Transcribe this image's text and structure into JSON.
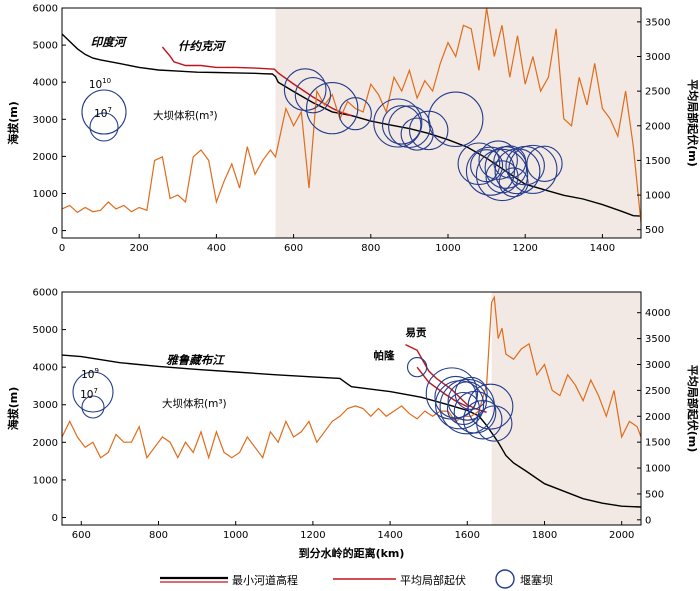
{
  "chart_data": [
    {
      "type": "line",
      "panel": "top",
      "river_label": "印度河",
      "tributary_label": "什约克河",
      "xlim": [
        0,
        1500
      ],
      "xticks": [
        0,
        200,
        400,
        600,
        800,
        1000,
        1200,
        1400
      ],
      "ylim_left": [
        -200,
        6000
      ],
      "yticks_left": [
        0,
        1000,
        2000,
        3000,
        4000,
        5000,
        6000
      ],
      "ylabel_left": "海拔(m)",
      "ylim_right": [
        380,
        3700
      ],
      "yticks_right": [
        500,
        1000,
        1500,
        2000,
        2500,
        3000,
        3500
      ],
      "ylabel_right": "平均局部起伏(m)",
      "shaded_region": [
        553,
        1500
      ],
      "size_legend": {
        "big_label": "10",
        "big_exp": "10",
        "small_label": "10",
        "small_exp": "7",
        "caption": "大坝体积(m³)"
      },
      "series": [
        {
          "name": "最小河道高程",
          "color": "#000000",
          "x": [
            0,
            20,
            40,
            60,
            80,
            100,
            150,
            200,
            250,
            300,
            350,
            400,
            450,
            500,
            520,
            545,
            553,
            560,
            600,
            650,
            700,
            750,
            800,
            850,
            900,
            950,
            1000,
            1050,
            1100,
            1150,
            1200,
            1250,
            1300,
            1350,
            1400,
            1450,
            1480,
            1500
          ],
          "y": [
            5300,
            5100,
            4900,
            4750,
            4650,
            4600,
            4500,
            4400,
            4330,
            4300,
            4270,
            4260,
            4250,
            4240,
            4230,
            4220,
            4150,
            4000,
            3750,
            3450,
            3200,
            3100,
            2950,
            2850,
            2750,
            2620,
            2450,
            2250,
            1950,
            1600,
            1250,
            1100,
            950,
            850,
            700,
            520,
            400,
            390
          ]
        },
        {
          "name": "什约克河高程",
          "color": "#c0141c",
          "x": [
            260,
            280,
            290,
            320,
            360,
            400,
            450,
            500,
            550,
            560,
            600,
            650,
            700,
            720,
            750
          ],
          "y": [
            4950,
            4700,
            4550,
            4450,
            4450,
            4400,
            4400,
            4380,
            4350,
            4250,
            3950,
            3600,
            3300,
            3200,
            3100
          ]
        },
        {
          "name": "平均局部起伏",
          "color": "#e06c1c",
          "x": [
            0,
            20,
            40,
            60,
            80,
            100,
            120,
            140,
            160,
            180,
            200,
            220,
            240,
            260,
            280,
            300,
            320,
            340,
            360,
            380,
            400,
            420,
            440,
            460,
            480,
            500,
            520,
            540,
            553,
            580,
            600,
            620,
            640,
            660,
            680,
            700,
            720,
            740,
            760,
            780,
            800,
            820,
            840,
            860,
            880,
            900,
            920,
            940,
            960,
            980,
            1000,
            1020,
            1040,
            1060,
            1080,
            1100,
            1120,
            1140,
            1160,
            1180,
            1200,
            1220,
            1240,
            1260,
            1280,
            1300,
            1320,
            1340,
            1360,
            1380,
            1400,
            1420,
            1440,
            1460,
            1480,
            1500
          ],
          "y": [
            800,
            850,
            750,
            820,
            760,
            780,
            900,
            800,
            850,
            760,
            820,
            780,
            1500,
            1550,
            950,
            1000,
            900,
            1550,
            1650,
            1500,
            900,
            1200,
            1450,
            1100,
            1700,
            1300,
            1500,
            1650,
            1550,
            2250,
            2000,
            2200,
            1100,
            2500,
            2300,
            2450,
            2100,
            2350,
            2250,
            2200,
            2600,
            2450,
            2200,
            2700,
            2500,
            2800,
            2400,
            2650,
            2500,
            2900,
            3200,
            3000,
            3450,
            3400,
            2800,
            3700,
            3000,
            3450,
            2700,
            3300,
            2600,
            3000,
            2500,
            2700,
            3400,
            2100,
            2000,
            2700,
            2300,
            2900,
            2250,
            2100,
            1850,
            2500,
            1700,
            600
          ]
        },
        {
          "name": "堰塞坝",
          "color": "#243b8c",
          "x": [
            630,
            650,
            700,
            760,
            870,
            880,
            900,
            920,
            950,
            1020,
            1080,
            1100,
            1110,
            1130,
            1140,
            1150,
            1160,
            1180,
            1200,
            1220,
            1250,
            1140,
            1170
          ],
          "y": [
            3800,
            3650,
            3300,
            3150,
            2900,
            2850,
            2800,
            2600,
            2700,
            3000,
            1800,
            1750,
            1600,
            1900,
            1500,
            1700,
            1850,
            1600,
            1750,
            1650,
            1800,
            1450,
            1300
          ],
          "size": [
            1.3,
            1.1,
            1.6,
            1.0,
            1.5,
            1.2,
            1.3,
            1.0,
            1.2,
            1.7,
            1.3,
            1.0,
            1.5,
            1.2,
            1.6,
            1.3,
            1.0,
            1.4,
            1.2,
            1.5,
            1.1,
            1.0,
            0.9
          ]
        }
      ]
    },
    {
      "type": "line",
      "panel": "bottom",
      "river_label": "雅鲁藏布江",
      "tributary_labels": [
        "易贡",
        "帕隆"
      ],
      "xlim": [
        550,
        2050
      ],
      "xticks": [
        600,
        800,
        1000,
        1200,
        1400,
        1600,
        1800,
        2000
      ],
      "xlabel": "到分水岭的距离(km)",
      "ylim_left": [
        -200,
        6000
      ],
      "yticks_left": [
        0,
        1000,
        2000,
        3000,
        4000,
        5000,
        6000
      ],
      "ylabel_left": "海拔(m)",
      "ylim_right": [
        -100,
        4400
      ],
      "yticks_right": [
        0,
        500,
        1000,
        1500,
        2000,
        2500,
        3000,
        3500,
        4000
      ],
      "ylabel_right": "平均局部起伏(m)",
      "shaded_region": [
        1663,
        2050
      ],
      "size_legend": {
        "big_label": "10",
        "big_exp": "9",
        "small_label": "10",
        "small_exp": "7",
        "caption": "大坝体积(m³)"
      },
      "series": [
        {
          "name": "最小河道高程",
          "color": "#000000",
          "x": [
            550,
            600,
            700,
            800,
            900,
            1000,
            1100,
            1200,
            1270,
            1290,
            1300,
            1400,
            1480,
            1550,
            1600,
            1630,
            1650,
            1680,
            1700,
            1720,
            1750,
            1800,
            1850,
            1900,
            1950,
            2000,
            2050
          ],
          "y": [
            4320,
            4280,
            4120,
            4020,
            3940,
            3870,
            3800,
            3740,
            3700,
            3550,
            3480,
            3350,
            3200,
            3000,
            2850,
            2700,
            2450,
            2000,
            1650,
            1450,
            1250,
            900,
            700,
            500,
            380,
            300,
            280
          ]
        },
        {
          "name": "易贡高程",
          "color": "#c0141c",
          "x": [
            1440,
            1470,
            1500,
            1520,
            1560,
            1580,
            1600,
            1620,
            1650
          ],
          "y": [
            4600,
            4450,
            3900,
            3700,
            3400,
            3200,
            3000,
            2900,
            2800
          ]
        },
        {
          "name": "帕隆高程",
          "color": "#c0141c",
          "x": [
            1470,
            1500,
            1540,
            1570,
            1600
          ],
          "y": [
            4000,
            3600,
            3300,
            3100,
            2950
          ]
        },
        {
          "name": "平均局部起伏",
          "color": "#e06c1c",
          "x": [
            550,
            570,
            590,
            610,
            630,
            650,
            670,
            690,
            710,
            730,
            750,
            770,
            790,
            810,
            830,
            850,
            870,
            890,
            910,
            930,
            950,
            970,
            990,
            1010,
            1030,
            1050,
            1070,
            1090,
            1110,
            1130,
            1150,
            1170,
            1190,
            1210,
            1230,
            1250,
            1270,
            1290,
            1310,
            1330,
            1350,
            1370,
            1390,
            1410,
            1430,
            1450,
            1470,
            1490,
            1510,
            1530,
            1550,
            1570,
            1590,
            1610,
            1630,
            1650,
            1663,
            1670,
            1680,
            1690,
            1700,
            1720,
            1740,
            1760,
            1780,
            1800,
            1820,
            1840,
            1860,
            1880,
            1900,
            1920,
            1940,
            1960,
            1980,
            2000,
            2020,
            2040,
            2050
          ],
          "y": [
            1600,
            1900,
            1600,
            1400,
            1500,
            1200,
            1300,
            1650,
            1500,
            1500,
            1800,
            1200,
            1400,
            1600,
            1500,
            1200,
            1500,
            1300,
            1700,
            1200,
            1700,
            1300,
            1200,
            1300,
            1600,
            1400,
            1200,
            1700,
            1500,
            1900,
            1600,
            1700,
            1900,
            1500,
            1700,
            1900,
            2000,
            2150,
            2200,
            2150,
            2000,
            2150,
            2000,
            2100,
            2200,
            2050,
            1950,
            2100,
            2000,
            2100,
            2100,
            1900,
            2000,
            2000,
            2100,
            2600,
            4200,
            4300,
            3500,
            3700,
            3200,
            3100,
            3300,
            3400,
            2800,
            3000,
            2500,
            2400,
            2800,
            2600,
            2300,
            2700,
            2400,
            2000,
            2500,
            1600,
            1900,
            1800,
            1600
          ]
        },
        {
          "name": "堰塞坝",
          "color": "#243b8c",
          "x": [
            1470,
            1560,
            1570,
            1580,
            1590,
            1600,
            1610,
            1620,
            1640,
            1660,
            1670,
            1600
          ],
          "y": [
            4000,
            3300,
            3200,
            3000,
            2900,
            3100,
            3300,
            2800,
            2600,
            2950,
            2500,
            2950
          ],
          "size": [
            0.6,
            1.6,
            1.3,
            1.5,
            1.0,
            1.2,
            1.0,
            1.3,
            1.2,
            1.4,
            1.1,
            1.7
          ]
        }
      ]
    }
  ],
  "legend": {
    "channel": "最小河道高程",
    "relief": "平均局部起伏",
    "dam": "堰塞坝"
  }
}
